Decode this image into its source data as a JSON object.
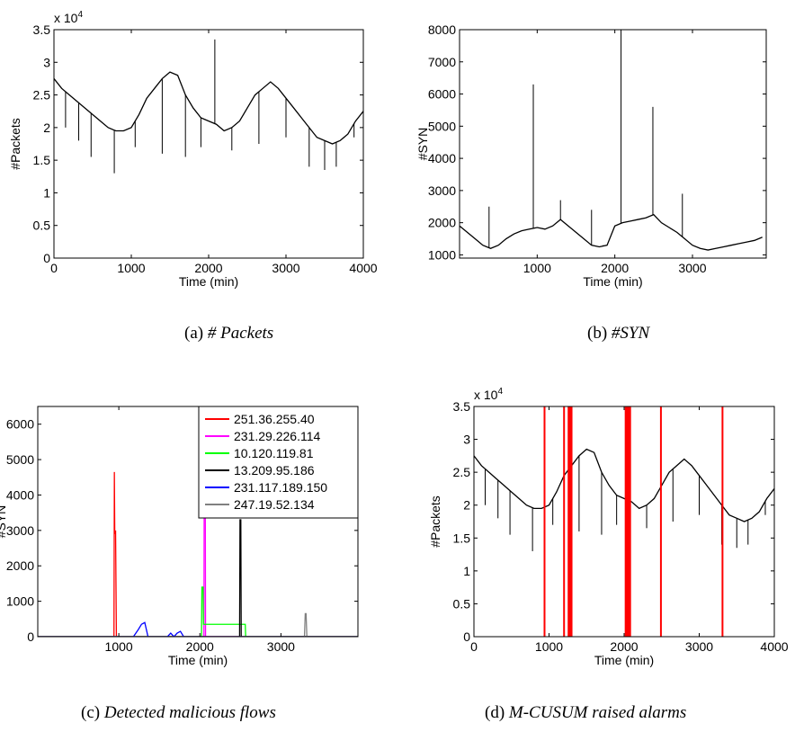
{
  "colors": {
    "axis": "#000000",
    "trace": "#000000",
    "alarm": "#ff0000"
  },
  "captions": [
    {
      "label": "(a)",
      "text": "# Packets"
    },
    {
      "label": "(b)",
      "text": "#SYN"
    },
    {
      "label": "(c)",
      "text": "Detected malicious flows"
    },
    {
      "label": "(d)",
      "text": "M-CUSUM raised alarms"
    }
  ],
  "chart_data": [
    {
      "id": "a",
      "type": "line",
      "xlabel": "Time (min)",
      "ylabel": "#Packets",
      "exponent": "x 10^4",
      "xlim": [
        0,
        4000
      ],
      "ylim": [
        0,
        3.5
      ],
      "xticks": [
        0,
        1000,
        2000,
        3000,
        4000
      ],
      "yticks": [
        0,
        0.5,
        1,
        1.5,
        2,
        2.5,
        3,
        3.5
      ],
      "series": [
        {
          "color": "#000000",
          "x": [
            0,
            100,
            200,
            300,
            400,
            500,
            600,
            700,
            800,
            900,
            1000,
            1100,
            1200,
            1300,
            1400,
            1500,
            1600,
            1700,
            1800,
            1900,
            2000,
            2100,
            2200,
            2300,
            2400,
            2500,
            2600,
            2700,
            2800,
            2900,
            3000,
            3100,
            3200,
            3300,
            3400,
            3500,
            3600,
            3700,
            3800,
            3900,
            4000
          ],
          "values": [
            2.75,
            2.6,
            2.5,
            2.4,
            2.3,
            2.2,
            2.1,
            2.0,
            1.95,
            1.95,
            2.0,
            2.2,
            2.45,
            2.6,
            2.75,
            2.85,
            2.8,
            2.5,
            2.3,
            2.15,
            2.1,
            2.05,
            1.95,
            2.0,
            2.1,
            2.3,
            2.5,
            2.6,
            2.7,
            2.6,
            2.45,
            2.3,
            2.15,
            2.0,
            1.85,
            1.8,
            1.75,
            1.8,
            1.9,
            2.1,
            2.25
          ]
        }
      ],
      "spikes": [
        [
          2080,
          3.35
        ],
        [
          150,
          2.0
        ],
        [
          320,
          1.8
        ],
        [
          480,
          1.55
        ],
        [
          780,
          1.3
        ],
        [
          1050,
          1.7
        ],
        [
          1400,
          1.6
        ],
        [
          1700,
          1.55
        ],
        [
          1900,
          1.7
        ],
        [
          2300,
          1.65
        ],
        [
          2650,
          1.75
        ],
        [
          3000,
          1.85
        ],
        [
          3300,
          1.4
        ],
        [
          3500,
          1.35
        ],
        [
          3650,
          1.4
        ],
        [
          3880,
          1.85
        ]
      ]
    },
    {
      "id": "b",
      "type": "line",
      "xlabel": "Time (min)",
      "ylabel": "#SYN",
      "xlim": [
        0,
        3950
      ],
      "ylim": [
        900,
        8000
      ],
      "xticks": [
        1000,
        2000,
        3000
      ],
      "yticks": [
        1000,
        2000,
        3000,
        4000,
        5000,
        6000,
        7000,
        8000
      ],
      "series": [
        {
          "color": "#000000",
          "x": [
            0,
            100,
            200,
            300,
            400,
            500,
            600,
            700,
            800,
            900,
            1000,
            1100,
            1200,
            1300,
            1400,
            1500,
            1600,
            1700,
            1800,
            1900,
            2000,
            2100,
            2200,
            2300,
            2400,
            2500,
            2600,
            2700,
            2800,
            2900,
            3000,
            3100,
            3200,
            3300,
            3400,
            3500,
            3600,
            3700,
            3800,
            3900
          ],
          "values": [
            1900,
            1700,
            1500,
            1300,
            1200,
            1300,
            1500,
            1650,
            1750,
            1800,
            1850,
            1800,
            1900,
            2100,
            1900,
            1700,
            1500,
            1300,
            1250,
            1300,
            1900,
            2000,
            2050,
            2100,
            2150,
            2250,
            2000,
            1850,
            1700,
            1500,
            1300,
            1200,
            1150,
            1200,
            1250,
            1300,
            1350,
            1400,
            1450,
            1550
          ]
        }
      ],
      "spikes": [
        [
          950,
          6300
        ],
        [
          2080,
          8000
        ],
        [
          2490,
          5600
        ],
        [
          380,
          2500
        ],
        [
          1300,
          2700
        ],
        [
          1700,
          2400
        ],
        [
          2870,
          2900
        ],
        [
          1850,
          1300
        ]
      ]
    },
    {
      "id": "c",
      "type": "line",
      "xlabel": "Time (min)",
      "ylabel": "#SYN",
      "xlim": [
        0,
        3950
      ],
      "ylim": [
        0,
        6500
      ],
      "xticks": [
        1000,
        2000,
        3000
      ],
      "yticks": [
        0,
        1000,
        2000,
        3000,
        4000,
        5000,
        6000
      ],
      "series": [
        {
          "name": "251.36.255.40",
          "color": "#ff0000",
          "x": [
            0,
            940,
            945,
            950,
            960,
            970,
            3950
          ],
          "values": [
            0,
            0,
            4650,
            2900,
            3000,
            0,
            0
          ]
        },
        {
          "name": "231.29.226.114",
          "color": "#ff00ff",
          "x": [
            0,
            2050,
            2055,
            2065,
            2070,
            3950
          ],
          "values": [
            0,
            0,
            6500,
            6500,
            0,
            0
          ]
        },
        {
          "name": "10.120.119.81",
          "color": "#00ff00",
          "x": [
            0,
            2020,
            2025,
            2040,
            2045,
            2560,
            2565,
            3950
          ],
          "values": [
            0,
            0,
            1400,
            1400,
            350,
            350,
            0,
            0
          ]
        },
        {
          "name": "13.209.95.186",
          "color": "#000000",
          "x": [
            0,
            2490,
            2495,
            2505,
            2510,
            3950
          ],
          "values": [
            0,
            0,
            3300,
            3300,
            0,
            0
          ]
        },
        {
          "name": "231.117.189.150",
          "color": "#0000ff",
          "x": [
            0,
            1180,
            1240,
            1280,
            1320,
            1360,
            1600,
            1640,
            1680,
            1720,
            1760,
            1800,
            3950
          ],
          "values": [
            0,
            0,
            200,
            350,
            400,
            0,
            0,
            100,
            0,
            100,
            150,
            0,
            0
          ]
        },
        {
          "name": "247.19.52.134",
          "color": "#808080",
          "x": [
            0,
            3290,
            3300,
            3310,
            3320,
            3950
          ],
          "values": [
            0,
            0,
            650,
            650,
            0,
            0
          ]
        }
      ],
      "legend": "top-right"
    },
    {
      "id": "d",
      "type": "line",
      "xlabel": "Time (min)",
      "ylabel": "#Packets",
      "exponent": "x 10^4",
      "xlim": [
        0,
        4000
      ],
      "ylim": [
        0,
        3.5
      ],
      "xticks": [
        0,
        1000,
        2000,
        3000,
        4000
      ],
      "yticks": [
        0,
        0.5,
        1,
        1.5,
        2,
        2.5,
        3,
        3.5
      ],
      "series": [
        {
          "color": "#000000",
          "x": [
            0,
            100,
            200,
            300,
            400,
            500,
            600,
            700,
            800,
            900,
            1000,
            1100,
            1200,
            1300,
            1400,
            1500,
            1600,
            1700,
            1800,
            1900,
            2000,
            2100,
            2200,
            2300,
            2400,
            2500,
            2600,
            2700,
            2800,
            2900,
            3000,
            3100,
            3200,
            3300,
            3400,
            3500,
            3600,
            3700,
            3800,
            3900,
            4000
          ],
          "values": [
            2.75,
            2.6,
            2.5,
            2.4,
            2.3,
            2.2,
            2.1,
            2.0,
            1.95,
            1.95,
            2.0,
            2.2,
            2.45,
            2.6,
            2.75,
            2.85,
            2.8,
            2.5,
            2.3,
            2.15,
            2.1,
            2.05,
            1.95,
            2.0,
            2.1,
            2.3,
            2.5,
            2.6,
            2.7,
            2.6,
            2.45,
            2.3,
            2.15,
            2.0,
            1.85,
            1.8,
            1.75,
            1.8,
            1.9,
            2.1,
            2.25
          ]
        }
      ],
      "spikes": [
        [
          2080,
          3.35
        ],
        [
          150,
          2.0
        ],
        [
          320,
          1.8
        ],
        [
          480,
          1.55
        ],
        [
          780,
          1.3
        ],
        [
          1050,
          1.7
        ],
        [
          1400,
          1.6
        ],
        [
          1700,
          1.55
        ],
        [
          1900,
          1.7
        ],
        [
          2300,
          1.65
        ],
        [
          2650,
          1.75
        ],
        [
          3000,
          1.85
        ],
        [
          3300,
          1.4
        ],
        [
          3500,
          1.35
        ],
        [
          3650,
          1.4
        ],
        [
          3880,
          1.85
        ]
      ],
      "alarms": [
        940,
        1200,
        1260,
        1280,
        1300,
        2020,
        2030,
        2040,
        2050,
        2060,
        2070,
        2080,
        2490,
        3310
      ]
    }
  ]
}
